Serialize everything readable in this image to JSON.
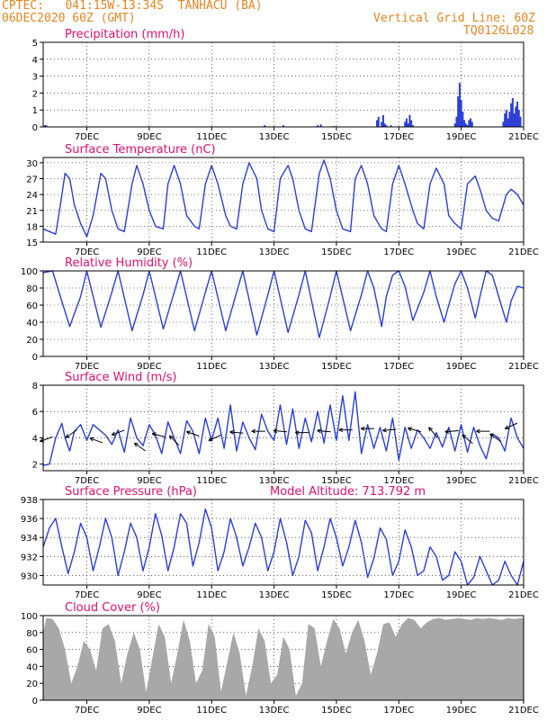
{
  "header": {
    "line1": "CPTEC:   041:15W-13:34S  TANHACU (BA)",
    "line2": "06DEC2020 60Z (GMT)",
    "grid_note": "Vertical Grid Line: 60Z",
    "model_code": "TQ0126L028"
  },
  "colors": {
    "header": "#e6851f",
    "title": "#e0106f",
    "series": "#2b3fd6",
    "cloud": "#a8a8a8",
    "wind_arrow": "#000000"
  },
  "x_axis": {
    "ticks": [
      {
        "day": 1,
        "label": "7DEC"
      },
      {
        "day": 3,
        "label": "9DEC"
      },
      {
        "day": 5,
        "label": "11DEC"
      },
      {
        "day": 7,
        "label": "13DEC"
      },
      {
        "day": 9,
        "label": "15DEC"
      },
      {
        "day": 11,
        "label": "17DEC"
      },
      {
        "day": 13,
        "label": "19DEC"
      },
      {
        "day": 15,
        "label": "21DEC"
      }
    ],
    "range_days": [
      -0.4,
      15.0
    ]
  },
  "chart_data": [
    {
      "id": "precip",
      "type": "bar",
      "title": "Precipitation (mm/h)",
      "ylim": [
        0,
        5
      ],
      "yticks": [
        0,
        1,
        2,
        3,
        4,
        5
      ],
      "x": [
        -0.35,
        -0.3,
        6.7,
        7.3,
        8.4,
        8.5,
        8.9,
        10.3,
        10.35,
        10.45,
        10.5,
        10.55,
        10.6,
        10.75,
        11.2,
        11.25,
        11.3,
        11.35,
        11.4,
        11.45,
        12.8,
        12.85,
        12.9,
        12.95,
        13.0,
        13.05,
        13.1,
        13.15,
        13.2,
        13.25,
        13.3,
        13.35,
        14.35,
        14.4,
        14.45,
        14.5,
        14.55,
        14.6,
        14.65,
        14.7,
        14.75,
        14.8,
        14.85,
        14.9
      ],
      "values": [
        0.1,
        0.1,
        0.1,
        0.1,
        0.1,
        0.15,
        0.05,
        0.4,
        0.6,
        0.3,
        0.7,
        0.2,
        0.1,
        0.1,
        0.3,
        0.5,
        0.2,
        0.7,
        0.4,
        0.1,
        0.2,
        0.6,
        1.8,
        2.6,
        1.6,
        0.9,
        0.4,
        0.2,
        0.1,
        0.4,
        0.5,
        0.3,
        0.3,
        0.8,
        1.0,
        0.5,
        0.9,
        1.4,
        1.7,
        0.8,
        1.2,
        1.5,
        1.0,
        0.6
      ]
    },
    {
      "id": "temp",
      "type": "line",
      "title": "Surface Temperature (nC)",
      "ylim": [
        15,
        31
      ],
      "yticks": [
        15,
        18,
        21,
        24,
        27,
        30
      ],
      "series": [
        {
          "x": [
            -0.4,
            -0.2,
            0.0,
            0.15,
            0.3,
            0.45,
            0.6,
            0.8,
            1.0,
            1.2,
            1.45,
            1.6,
            1.8,
            2.0,
            2.2,
            2.45,
            2.6,
            2.8,
            3.0,
            3.2,
            3.45,
            3.6,
            3.8,
            4.0,
            4.2,
            4.45,
            4.6,
            4.8,
            5.0,
            5.2,
            5.45,
            5.6,
            5.8,
            6.0,
            6.2,
            6.45,
            6.6,
            6.8,
            7.0,
            7.2,
            7.45,
            7.6,
            7.8,
            8.0,
            8.2,
            8.45,
            8.6,
            8.8,
            9.0,
            9.2,
            9.45,
            9.6,
            9.8,
            10.0,
            10.2,
            10.45,
            10.6,
            10.8,
            11.0,
            11.2,
            11.45,
            11.6,
            11.8,
            12.0,
            12.2,
            12.45,
            12.6,
            12.8,
            13.0,
            13.2,
            13.45,
            13.6,
            13.8,
            14.0,
            14.2,
            14.45,
            14.6,
            14.8,
            15.0
          ],
          "y": [
            17.5,
            17.0,
            16.5,
            22,
            28,
            27,
            22,
            18.5,
            16.0,
            20,
            28,
            27,
            21,
            17.5,
            17.0,
            26,
            29.5,
            26,
            21,
            18.0,
            17.5,
            26,
            29.5,
            26,
            20,
            18.0,
            17.5,
            26,
            29.5,
            26,
            20,
            18.0,
            17.5,
            26,
            30,
            27,
            21,
            17.5,
            17.0,
            27,
            29.5,
            27,
            21,
            17.5,
            17.0,
            28,
            30.5,
            27,
            21,
            17.5,
            17.0,
            27,
            29.5,
            26,
            20,
            17.5,
            17.0,
            26,
            29.5,
            26,
            21,
            18.5,
            17.5,
            26,
            29,
            26,
            20,
            18.5,
            17.5,
            26,
            27.5,
            25,
            21,
            19.5,
            19.0,
            24,
            25,
            24,
            22
          ]
        }
      ]
    },
    {
      "id": "rh",
      "type": "line",
      "title": "Relative Humidity (%)",
      "ylim": [
        0,
        100
      ],
      "yticks": [
        0,
        20,
        40,
        60,
        80,
        100
      ],
      "series": [
        {
          "x": [
            -0.4,
            -0.1,
            0.15,
            0.45,
            0.8,
            1.0,
            1.45,
            1.8,
            2.0,
            2.45,
            2.8,
            3.0,
            3.45,
            3.8,
            4.0,
            4.45,
            4.8,
            5.0,
            5.45,
            5.8,
            6.0,
            6.45,
            6.8,
            7.0,
            7.45,
            7.8,
            8.0,
            8.45,
            8.8,
            9.0,
            9.45,
            9.8,
            10.0,
            10.2,
            10.45,
            10.6,
            10.8,
            11.0,
            11.2,
            11.45,
            11.8,
            12.0,
            12.2,
            12.45,
            12.6,
            12.8,
            13.0,
            13.2,
            13.45,
            13.6,
            13.8,
            14.0,
            14.2,
            14.45,
            14.6,
            14.8,
            15.0
          ],
          "y": [
            98,
            100,
            70,
            35,
            70,
            100,
            34,
            75,
            100,
            30,
            72,
            100,
            32,
            75,
            100,
            30,
            75,
            100,
            30,
            75,
            100,
            25,
            72,
            100,
            28,
            72,
            100,
            22,
            70,
            100,
            30,
            72,
            100,
            80,
            35,
            70,
            95,
            100,
            82,
            42,
            75,
            100,
            70,
            40,
            60,
            85,
            100,
            80,
            45,
            70,
            100,
            95,
            70,
            40,
            65,
            82,
            80
          ]
        }
      ]
    },
    {
      "id": "wind",
      "type": "line",
      "title": "Surface Wind (m/s)",
      "ylim": [
        1.5,
        8
      ],
      "yticks": [
        2,
        4,
        6,
        8
      ],
      "series": [
        {
          "x": [
            -0.4,
            -0.2,
            0.0,
            0.2,
            0.3,
            0.45,
            0.6,
            0.8,
            1.0,
            1.2,
            1.4,
            1.6,
            1.8,
            2.0,
            2.2,
            2.4,
            2.6,
            2.8,
            3.0,
            3.2,
            3.4,
            3.6,
            3.8,
            4.0,
            4.2,
            4.4,
            4.6,
            4.8,
            5.0,
            5.2,
            5.4,
            5.6,
            5.8,
            6.0,
            6.2,
            6.4,
            6.6,
            6.8,
            7.0,
            7.2,
            7.4,
            7.6,
            7.8,
            8.0,
            8.2,
            8.4,
            8.6,
            8.8,
            9.0,
            9.2,
            9.4,
            9.6,
            9.8,
            10.0,
            10.2,
            10.4,
            10.6,
            10.8,
            11.0,
            11.2,
            11.4,
            11.6,
            11.8,
            12.0,
            12.2,
            12.4,
            12.6,
            12.8,
            13.0,
            13.2,
            13.4,
            13.6,
            13.8,
            14.0,
            14.2,
            14.4,
            14.6,
            14.8,
            15.0
          ],
          "y": [
            1.9,
            2.0,
            4.0,
            5.1,
            4.0,
            3.0,
            4.5,
            5.0,
            3.8,
            5.0,
            4.6,
            4.2,
            3.5,
            4.6,
            2.9,
            5.5,
            4.0,
            3.4,
            5.0,
            4.2,
            2.8,
            5.2,
            4.0,
            2.8,
            5.3,
            4.5,
            2.8,
            5.5,
            3.8,
            5.5,
            3.2,
            6.5,
            3.0,
            5.2,
            4.0,
            3.1,
            5.8,
            4.5,
            3.8,
            6.5,
            3.5,
            6.2,
            3.2,
            5.5,
            3.7,
            6.0,
            3.6,
            6.5,
            3.8,
            7.2,
            3.8,
            7.5,
            2.8,
            5.0,
            3.2,
            4.8,
            3.0,
            5.5,
            2.3,
            4.8,
            3.2,
            4.6,
            4.0,
            3.2,
            4.4,
            3.3,
            4.8,
            3.0,
            5.0,
            2.9,
            4.8,
            3.4,
            2.4,
            4.3,
            4.0,
            3.0,
            5.5,
            4.0,
            3.2
          ]
        }
      ],
      "arrows": [
        {
          "x": -0.3,
          "y": 3.9,
          "dir": 200
        },
        {
          "x": 0.5,
          "y": 4.3,
          "dir": 215
        },
        {
          "x": 1.3,
          "y": 3.8,
          "dir": 160
        },
        {
          "x": 2.0,
          "y": 4.4,
          "dir": 200
        },
        {
          "x": 2.7,
          "y": 3.3,
          "dir": 145
        },
        {
          "x": 3.3,
          "y": 4.2,
          "dir": 165
        },
        {
          "x": 3.8,
          "y": 3.8,
          "dir": 135
        },
        {
          "x": 4.4,
          "y": 4.3,
          "dir": 160
        },
        {
          "x": 5.1,
          "y": 4.0,
          "dir": 205
        },
        {
          "x": 5.8,
          "y": 4.4,
          "dir": 175
        },
        {
          "x": 6.5,
          "y": 4.5,
          "dir": 180
        },
        {
          "x": 7.2,
          "y": 4.5,
          "dir": 175
        },
        {
          "x": 7.9,
          "y": 4.4,
          "dir": 180
        },
        {
          "x": 8.6,
          "y": 4.5,
          "dir": 175
        },
        {
          "x": 9.3,
          "y": 4.6,
          "dir": 180
        },
        {
          "x": 10.0,
          "y": 4.7,
          "dir": 180
        },
        {
          "x": 10.7,
          "y": 4.6,
          "dir": 185
        },
        {
          "x": 11.5,
          "y": 4.6,
          "dir": 165
        },
        {
          "x": 12.1,
          "y": 4.4,
          "dir": 130
        },
        {
          "x": 12.7,
          "y": 4.5,
          "dir": 185
        },
        {
          "x": 13.2,
          "y": 3.9,
          "dir": 140
        },
        {
          "x": 13.7,
          "y": 4.5,
          "dir": 180
        },
        {
          "x": 14.1,
          "y": 4.0,
          "dir": 145
        },
        {
          "x": 14.6,
          "y": 4.9,
          "dir": 205
        }
      ]
    },
    {
      "id": "pressure",
      "type": "line",
      "title": "Surface Pressure (hPa)",
      "annotation": "Model Altitude: 713.792 m",
      "ylim": [
        929,
        938
      ],
      "yticks": [
        930,
        932,
        934,
        936,
        938
      ],
      "series": [
        {
          "x": [
            -0.4,
            -0.2,
            0.0,
            0.2,
            0.4,
            0.6,
            0.8,
            1.0,
            1.2,
            1.4,
            1.6,
            1.8,
            2.0,
            2.2,
            2.4,
            2.6,
            2.8,
            3.0,
            3.2,
            3.4,
            3.6,
            3.8,
            4.0,
            4.2,
            4.4,
            4.6,
            4.8,
            5.0,
            5.2,
            5.4,
            5.6,
            5.8,
            6.0,
            6.2,
            6.4,
            6.6,
            6.8,
            7.0,
            7.2,
            7.4,
            7.6,
            7.8,
            8.0,
            8.2,
            8.4,
            8.6,
            8.8,
            9.0,
            9.2,
            9.4,
            9.6,
            9.8,
            10.0,
            10.2,
            10.4,
            10.6,
            10.8,
            11.0,
            11.2,
            11.4,
            11.6,
            11.8,
            12.0,
            12.2,
            12.4,
            12.6,
            12.8,
            13.0,
            13.2,
            13.4,
            13.6,
            13.8,
            14.0,
            14.2,
            14.4,
            14.6,
            14.8,
            15.0
          ],
          "y": [
            933.0,
            935.0,
            936.0,
            933.0,
            930.2,
            932.5,
            935.5,
            934.0,
            930.5,
            933.0,
            936.0,
            934.0,
            930.0,
            932.5,
            935.5,
            934.0,
            930.5,
            933.0,
            936.5,
            934.2,
            930.5,
            933.0,
            936.5,
            935.5,
            931.0,
            933.5,
            937.0,
            935.0,
            930.5,
            932.5,
            936.0,
            934.0,
            931.0,
            933.0,
            935.5,
            934.0,
            930.5,
            932.5,
            936.0,
            933.5,
            930.0,
            932.0,
            935.8,
            934.5,
            930.5,
            933.0,
            936.0,
            934.0,
            931.0,
            933.0,
            935.8,
            933.5,
            929.8,
            931.8,
            935.0,
            933.8,
            930.0,
            931.5,
            934.8,
            933.0,
            930.0,
            930.5,
            933.0,
            932.0,
            929.5,
            930.0,
            932.5,
            931.5,
            929.0,
            929.8,
            932.0,
            930.5,
            929.0,
            929.5,
            931.5,
            930.0,
            929.0,
            931.5
          ]
        }
      ]
    },
    {
      "id": "cloud",
      "type": "area",
      "title": "Cloud Cover (%)",
      "ylim": [
        0,
        100
      ],
      "yticks": [
        0,
        20,
        40,
        60,
        80,
        100
      ],
      "series": [
        {
          "x": [
            -0.4,
            -0.3,
            -0.1,
            0.1,
            0.3,
            0.5,
            0.7,
            0.9,
            1.1,
            1.3,
            1.5,
            1.7,
            1.9,
            2.1,
            2.3,
            2.5,
            2.7,
            2.9,
            3.1,
            3.3,
            3.5,
            3.7,
            3.9,
            4.1,
            4.3,
            4.5,
            4.7,
            4.9,
            5.1,
            5.3,
            5.5,
            5.7,
            5.9,
            6.1,
            6.3,
            6.5,
            6.7,
            6.9,
            7.1,
            7.3,
            7.5,
            7.7,
            7.9,
            8.1,
            8.3,
            8.5,
            8.7,
            8.9,
            9.1,
            9.3,
            9.5,
            9.7,
            9.9,
            10.1,
            10.3,
            10.5,
            10.7,
            10.9,
            11.1,
            11.3,
            11.5,
            11.7,
            11.9,
            12.1,
            12.3,
            12.5,
            12.7,
            12.9,
            13.1,
            13.3,
            13.5,
            13.7,
            13.9,
            14.1,
            14.3,
            14.5,
            14.7,
            14.9,
            15.0
          ],
          "y": [
            80,
            97,
            96,
            85,
            60,
            20,
            40,
            70,
            60,
            35,
            85,
            90,
            70,
            20,
            55,
            80,
            60,
            10,
            50,
            90,
            75,
            20,
            55,
            95,
            70,
            20,
            35,
            90,
            75,
            10,
            45,
            80,
            55,
            5,
            40,
            85,
            70,
            20,
            30,
            75,
            60,
            5,
            20,
            90,
            85,
            40,
            70,
            96,
            85,
            55,
            80,
            95,
            70,
            30,
            55,
            90,
            92,
            75,
            90,
            97,
            95,
            85,
            92,
            96,
            97,
            95,
            96,
            97,
            96,
            95,
            97,
            96,
            97,
            96,
            95,
            97,
            96,
            97,
            97
          ]
        }
      ]
    }
  ]
}
